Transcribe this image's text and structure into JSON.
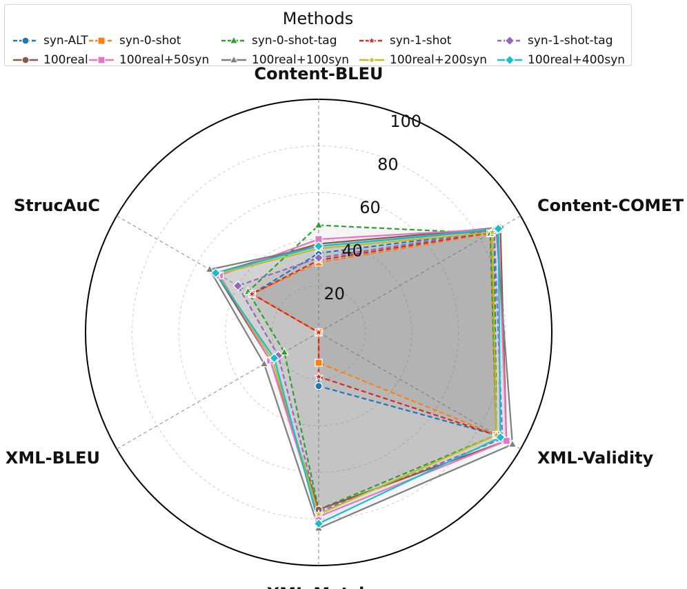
{
  "chart_data": {
    "type": "radar",
    "legend_title": "Methods",
    "axes": [
      "Content-BLEU",
      "Content-COMET",
      "XML-Validity",
      "XML-Match",
      "XML-BLEU",
      "StrucAuC"
    ],
    "radial_ticks": [
      20,
      40,
      60,
      80,
      100
    ],
    "rlim": [
      0,
      100
    ],
    "series": [
      {
        "name": "syn-ALT",
        "color": "#1f77b4",
        "marker": "circle",
        "linestyle": "dashed",
        "values": [
          34,
          87,
          88,
          23,
          0,
          33
        ]
      },
      {
        "name": "syn-0-shot",
        "color": "#ff7f0e",
        "marker": "square",
        "linestyle": "dashed",
        "values": [
          30,
          85,
          88,
          13,
          0,
          33
        ]
      },
      {
        "name": "syn-0-shot-tag",
        "color": "#2ca02c",
        "marker": "triangle",
        "linestyle": "dashed",
        "values": [
          46,
          85,
          88,
          76,
          17,
          35
        ]
      },
      {
        "name": "syn-1-shot",
        "color": "#d62728",
        "marker": "star",
        "linestyle": "dashed",
        "values": [
          31,
          86,
          88,
          19,
          0,
          33
        ]
      },
      {
        "name": "syn-1-shot-tag",
        "color": "#9467bd",
        "marker": "diamond",
        "linestyle": "dashed",
        "values": [
          32,
          87,
          91,
          77,
          20,
          40
        ]
      },
      {
        "name": "100real",
        "color": "#8c564b",
        "marker": "circle",
        "linestyle": "solid",
        "values": [
          38,
          90,
          93,
          76,
          24,
          51
        ]
      },
      {
        "name": "100real+50syn",
        "color": "#e377c2",
        "marker": "square",
        "linestyle": "solid",
        "values": [
          40,
          89,
          93,
          79,
          24,
          49
        ]
      },
      {
        "name": "100real+100syn",
        "color": "#7f7f7f",
        "marker": "triangle",
        "linestyle": "solid",
        "values": [
          37,
          88,
          96,
          84,
          27,
          54
        ]
      },
      {
        "name": "100real+200syn",
        "color": "#bcbd22",
        "marker": "star",
        "linestyle": "solid",
        "values": [
          36,
          86,
          88,
          78,
          23,
          50
        ]
      },
      {
        "name": "100real+400syn",
        "color": "#17becf",
        "marker": "diamond",
        "linestyle": "solid",
        "values": [
          37,
          89,
          90,
          82,
          22,
          51
        ]
      }
    ]
  }
}
